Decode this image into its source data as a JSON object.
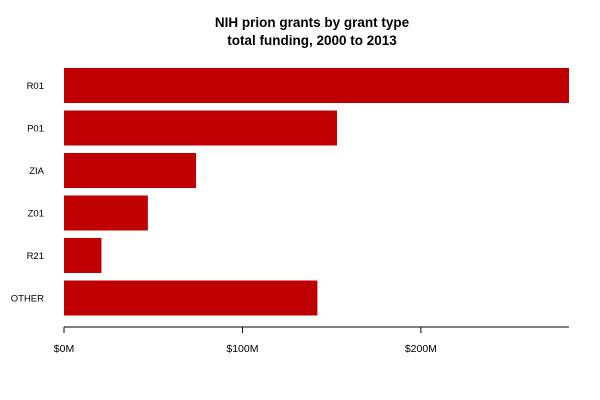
{
  "chart_data": {
    "type": "bar",
    "orientation": "horizontal",
    "title": "NIH prion grants by grant type",
    "subtitle": "total funding, 2000 to 2013",
    "categories": [
      "R01",
      "P01",
      "ZIA",
      "Z01",
      "R21",
      "OTHER"
    ],
    "values": [
      283,
      153,
      74,
      47,
      21,
      142
    ],
    "unit": "$M",
    "xlim": [
      0,
      283
    ],
    "x_ticks": [
      0,
      100,
      200
    ],
    "x_tick_labels": [
      "$0M",
      "$100M",
      "$200M"
    ],
    "bar_color": "#c00000",
    "grid": false,
    "legend": "none"
  }
}
